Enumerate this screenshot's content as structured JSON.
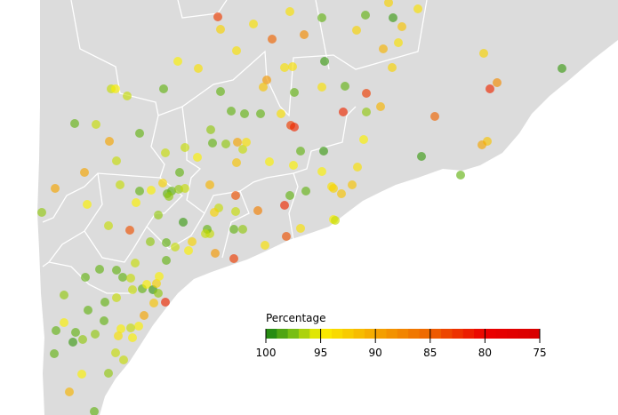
{
  "legend": {
    "title": "Percentage",
    "ticks": [
      100,
      95,
      90,
      85,
      80,
      75
    ]
  },
  "points": {
    "values": [
      83,
      93,
      94,
      94,
      85,
      88,
      98,
      93,
      98,
      93,
      99,
      92,
      94,
      94,
      91,
      93,
      99,
      88,
      82,
      93,
      99,
      94,
      94,
      89,
      92,
      98,
      94,
      98,
      83,
      82,
      97,
      91,
      85,
      92,
      90,
      99,
      98,
      98,
      98,
      98,
      94,
      83,
      97,
      97,
      90,
      96,
      94,
      92,
      98,
      95,
      96,
      98,
      95,
      94,
      94,
      98,
      96,
      95,
      96,
      98,
      96,
      90,
      98,
      96,
      96,
      98,
      93,
      98,
      98,
      97,
      97,
      96,
      98,
      95,
      95,
      96,
      90,
      90,
      95,
      97,
      96,
      84,
      97,
      98,
      99,
      97,
      91,
      84,
      96,
      93,
      96,
      87,
      82,
      98,
      98,
      94,
      92,
      92,
      95,
      98,
      95,
      95,
      82,
      99,
      94,
      95,
      94,
      84,
      94,
      83,
      89,
      96,
      98,
      97,
      98,
      96,
      93,
      96,
      95,
      98,
      96,
      98,
      98,
      98,
      98,
      96,
      96,
      98,
      95,
      99,
      93,
      95,
      97,
      82,
      92,
      90,
      95,
      96,
      95,
      96,
      98,
      98,
      98,
      95,
      97,
      95,
      98,
      98,
      99,
      97,
      97,
      94,
      96,
      96,
      97,
      95,
      98,
      91,
      98,
      95,
      96,
      93
    ]
  }
}
